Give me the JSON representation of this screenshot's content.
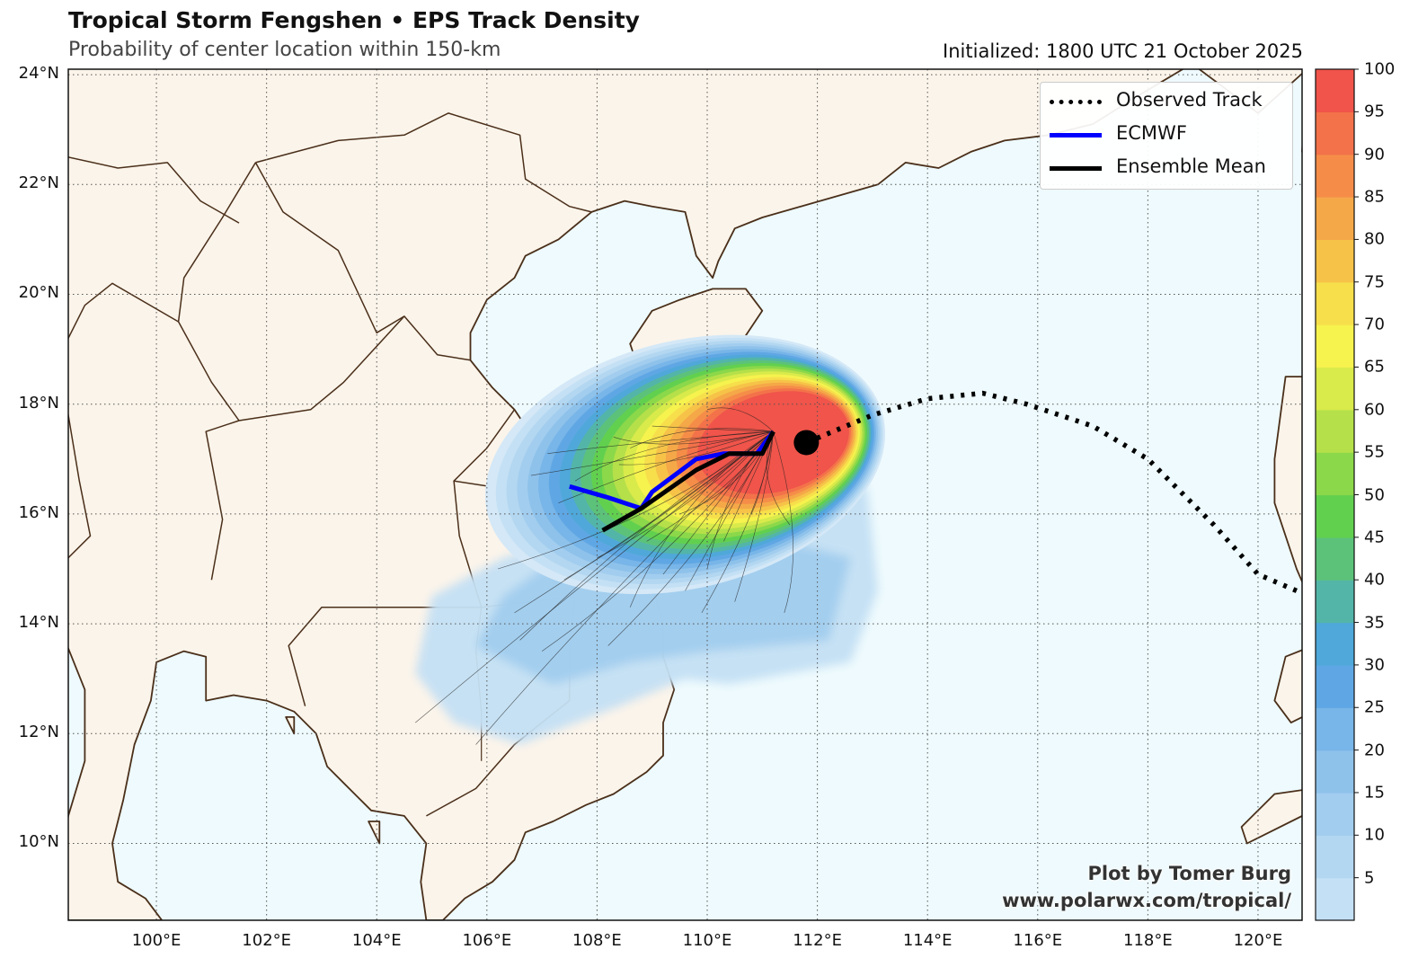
{
  "header": {
    "title": "Tropical Storm Fengshen • EPS Track Density",
    "subtitle": "Probability of center location within 150-km",
    "initialized": "Initialized: 1800 UTC 21 October 2025"
  },
  "map": {
    "lat_labels": [
      "24°N",
      "22°N",
      "20°N",
      "18°N",
      "16°N",
      "14°N",
      "12°N",
      "10°N"
    ],
    "lon_labels": [
      "100°E",
      "102°E",
      "104°E",
      "106°E",
      "108°E",
      "110°E",
      "112°E",
      "114°E",
      "116°E",
      "118°E",
      "120°E"
    ],
    "extent": {
      "lon_min": 98.4,
      "lon_max": 120.8,
      "lat_min": 8.6,
      "lat_max": 24.1
    },
    "land_color": "#fbf4ea",
    "ocean_color": "#eefafd",
    "coast_color": "#4a2f1a",
    "grid": "dotted"
  },
  "legend": {
    "items": [
      {
        "label": "Observed Track",
        "style": "dotted",
        "color": "#000000"
      },
      {
        "label": "ECMWF",
        "style": "solid",
        "color": "#0000ff"
      },
      {
        "label": "Ensemble Mean",
        "style": "solid",
        "color": "#000000"
      }
    ]
  },
  "colorbar": {
    "ticks": [
      "100",
      "95",
      "90",
      "85",
      "80",
      "75",
      "70",
      "65",
      "60",
      "55",
      "50",
      "45",
      "40",
      "35",
      "30",
      "25",
      "20",
      "15",
      "10",
      "5"
    ],
    "colors": [
      "#d4e8f7",
      "#c4e0f4",
      "#b3d7f1",
      "#a2cdee",
      "#8ec2eb",
      "#78b5e8",
      "#5fa7e4",
      "#4fa8d9",
      "#53b5a8",
      "#5cc27a",
      "#62d04f",
      "#8bd84a",
      "#b5e049",
      "#d9ea4b",
      "#f6f24e",
      "#f7df4c",
      "#f6c348",
      "#f5a848",
      "#f58d48",
      "#f3724a",
      "#f0544a"
    ]
  },
  "tracks": {
    "observed_track": [
      [
        120.7,
        14.6
      ],
      [
        120.0,
        14.9
      ],
      [
        119.2,
        15.8
      ],
      [
        118.0,
        17.0
      ],
      [
        117.0,
        17.6
      ],
      [
        115.8,
        18.0
      ],
      [
        115.0,
        18.2
      ],
      [
        114.0,
        18.1
      ],
      [
        113.0,
        17.8
      ],
      [
        111.8,
        17.3
      ]
    ],
    "current_position": [
      111.8,
      17.3
    ],
    "ecmwf": [
      [
        107.5,
        16.5
      ],
      [
        108.2,
        16.3
      ],
      [
        108.8,
        16.1
      ],
      [
        109.0,
        16.4
      ],
      [
        109.8,
        17.0
      ],
      [
        110.3,
        17.1
      ],
      [
        110.9,
        17.1
      ],
      [
        111.2,
        17.5
      ]
    ],
    "ensemble_mean": [
      [
        108.1,
        15.7
      ],
      [
        108.8,
        16.1
      ],
      [
        109.8,
        16.8
      ],
      [
        110.4,
        17.1
      ],
      [
        111.0,
        17.1
      ],
      [
        111.2,
        17.5
      ]
    ]
  },
  "credit": {
    "line1": "Plot by Tomer Burg",
    "line2": "www.polarwx.com/tropical/"
  }
}
